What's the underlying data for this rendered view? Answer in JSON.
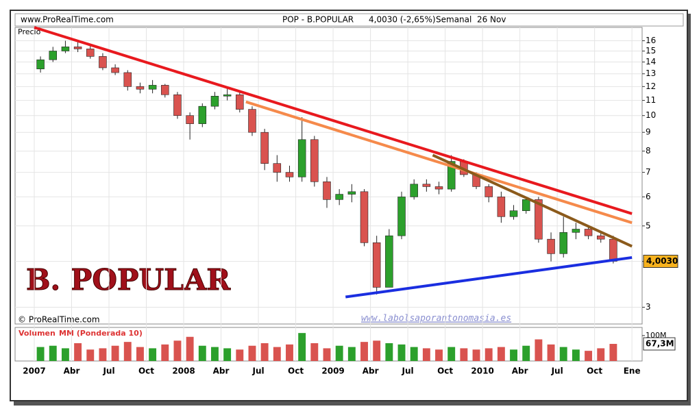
{
  "header": {
    "site": "www.ProRealTime.com",
    "instrument": "POP - B.POPULAR",
    "quote": "4,0030 (-2,65%)",
    "period": "Semanal  26 Nov"
  },
  "chart_data": {
    "type": "candlestick",
    "title": "B. POPULAR",
    "y_label": "Precio",
    "log_scale": true,
    "grid": true,
    "copyright": "© ProRealTime.com",
    "watermark": "www.labolsaporantonomasia.es",
    "x": [
      "2007-01",
      "2007-02",
      "2007-03",
      "2007-04",
      "2007-05",
      "2007-06",
      "2007-07",
      "2007-08",
      "2007-09",
      "2007-10",
      "2007-11",
      "2007-12",
      "2008-01",
      "2008-02",
      "2008-03",
      "2008-04",
      "2008-05",
      "2008-06",
      "2008-07",
      "2008-08",
      "2008-09",
      "2008-10",
      "2008-11",
      "2008-12",
      "2009-01",
      "2009-02",
      "2009-03",
      "2009-04",
      "2009-05",
      "2009-06",
      "2009-07",
      "2009-08",
      "2009-09",
      "2009-10",
      "2009-11",
      "2009-12",
      "2010-01",
      "2010-02",
      "2010-03",
      "2010-04",
      "2010-05",
      "2010-06",
      "2010-07",
      "2010-08",
      "2010-09",
      "2010-10",
      "2010-11"
    ],
    "open": [
      13.4,
      14.2,
      15.0,
      15.4,
      15.2,
      14.5,
      13.5,
      13.1,
      12.0,
      11.8,
      12.1,
      11.4,
      10.0,
      9.5,
      10.6,
      11.3,
      11.4,
      10.4,
      9.0,
      7.4,
      7.0,
      6.8,
      8.6,
      6.6,
      5.9,
      6.1,
      6.2,
      4.5,
      3.4,
      4.7,
      6.0,
      6.5,
      6.4,
      6.3,
      7.5,
      6.9,
      6.4,
      6.0,
      5.3,
      5.5,
      5.9,
      4.6,
      4.2,
      4.8,
      4.9,
      4.7,
      4.6
    ],
    "high": [
      14.5,
      15.4,
      16.0,
      16.1,
      15.5,
      14.8,
      13.8,
      13.3,
      12.3,
      12.5,
      12.2,
      11.6,
      10.2,
      10.8,
      11.6,
      12.0,
      11.6,
      10.6,
      9.2,
      7.8,
      7.3,
      9.9,
      8.8,
      6.8,
      6.3,
      6.5,
      6.3,
      4.7,
      4.9,
      6.2,
      6.7,
      6.7,
      6.6,
      7.8,
      7.6,
      7.0,
      6.5,
      6.2,
      5.7,
      6.0,
      6.0,
      4.8,
      5.3,
      5.1,
      5.0,
      4.8,
      4.7
    ],
    "low": [
      13.1,
      14.0,
      14.8,
      14.9,
      14.3,
      13.3,
      12.9,
      11.7,
      11.5,
      11.5,
      11.2,
      9.8,
      8.6,
      9.3,
      10.4,
      11.0,
      10.2,
      8.8,
      7.1,
      6.6,
      6.6,
      6.6,
      6.4,
      5.6,
      5.7,
      5.8,
      4.4,
      3.25,
      3.4,
      4.6,
      5.9,
      6.2,
      6.1,
      6.2,
      6.8,
      6.3,
      5.8,
      5.1,
      5.2,
      5.4,
      4.5,
      4.0,
      4.1,
      4.6,
      4.6,
      4.5,
      3.95
    ],
    "close": [
      14.2,
      15.0,
      15.4,
      15.2,
      14.5,
      13.5,
      13.1,
      12.0,
      11.8,
      12.1,
      11.4,
      10.0,
      9.5,
      10.6,
      11.3,
      11.4,
      10.4,
      9.0,
      7.4,
      7.0,
      6.8,
      8.6,
      6.6,
      5.9,
      6.1,
      6.2,
      4.5,
      3.4,
      4.7,
      6.0,
      6.5,
      6.4,
      6.3,
      7.5,
      6.9,
      6.4,
      6.0,
      5.3,
      5.5,
      5.9,
      4.6,
      4.2,
      4.8,
      4.9,
      4.7,
      4.6,
      4.003
    ],
    "up_color": "#2ca02c",
    "down_color": "#d9534f",
    "last_price": {
      "value": 4.003,
      "label": "4,0030"
    },
    "ylim": [
      2.7,
      17.4
    ],
    "yticks": [
      3,
      4,
      5,
      6,
      7,
      8,
      9,
      10,
      11,
      12,
      13,
      14,
      15,
      16
    ],
    "xticks": [
      {
        "value": "2007-01",
        "label": "2007"
      },
      {
        "value": "2007-04",
        "label": "Abr"
      },
      {
        "value": "2007-07",
        "label": "Jul"
      },
      {
        "value": "2007-10",
        "label": "Oct"
      },
      {
        "value": "2008-01",
        "label": "2008"
      },
      {
        "value": "2008-04",
        "label": "Abr"
      },
      {
        "value": "2008-07",
        "label": "Jul"
      },
      {
        "value": "2008-10",
        "label": "Oct"
      },
      {
        "value": "2009-01",
        "label": "2009"
      },
      {
        "value": "2009-04",
        "label": "Abr"
      },
      {
        "value": "2009-07",
        "label": "Jul"
      },
      {
        "value": "2009-10",
        "label": "Oct"
      },
      {
        "value": "2010-01",
        "label": "2010"
      },
      {
        "value": "2010-04",
        "label": "Abr"
      },
      {
        "value": "2010-07",
        "label": "Jul"
      },
      {
        "value": "2010-10",
        "label": "Oct"
      },
      {
        "value": "2011-01",
        "label": "Ene"
      }
    ],
    "trendlines": [
      {
        "color": "#e8191e",
        "x": [
          "2007-01",
          "2011-01"
        ],
        "y": [
          17.4,
          5.4
        ]
      },
      {
        "color": "#f58a4b",
        "x": [
          "2008-06",
          "2011-01"
        ],
        "y": [
          10.9,
          5.1
        ]
      },
      {
        "color": "#8b5a1b",
        "x": [
          "2009-09",
          "2011-01"
        ],
        "y": [
          7.8,
          4.4
        ]
      },
      {
        "color": "#1a2ee0",
        "x": [
          "2009-02",
          "2011-01"
        ],
        "y": [
          3.2,
          4.1
        ]
      }
    ],
    "volume": {
      "label": "Volumen",
      "ma_label": "MM (Ponderada 10)",
      "values": [
        55,
        60,
        50,
        70,
        45,
        50,
        60,
        75,
        55,
        50,
        65,
        80,
        95,
        60,
        55,
        50,
        45,
        60,
        70,
        55,
        65,
        110,
        70,
        50,
        60,
        55,
        75,
        80,
        70,
        65,
        55,
        50,
        45,
        55,
        50,
        45,
        50,
        55,
        45,
        60,
        85,
        65,
        55,
        45,
        40,
        50,
        67.3
      ],
      "ylim": [
        0,
        132
      ],
      "yticks": [
        {
          "value": 100,
          "label": "100M"
        }
      ],
      "last": {
        "value": 67.3,
        "label": "67,3M"
      }
    }
  }
}
